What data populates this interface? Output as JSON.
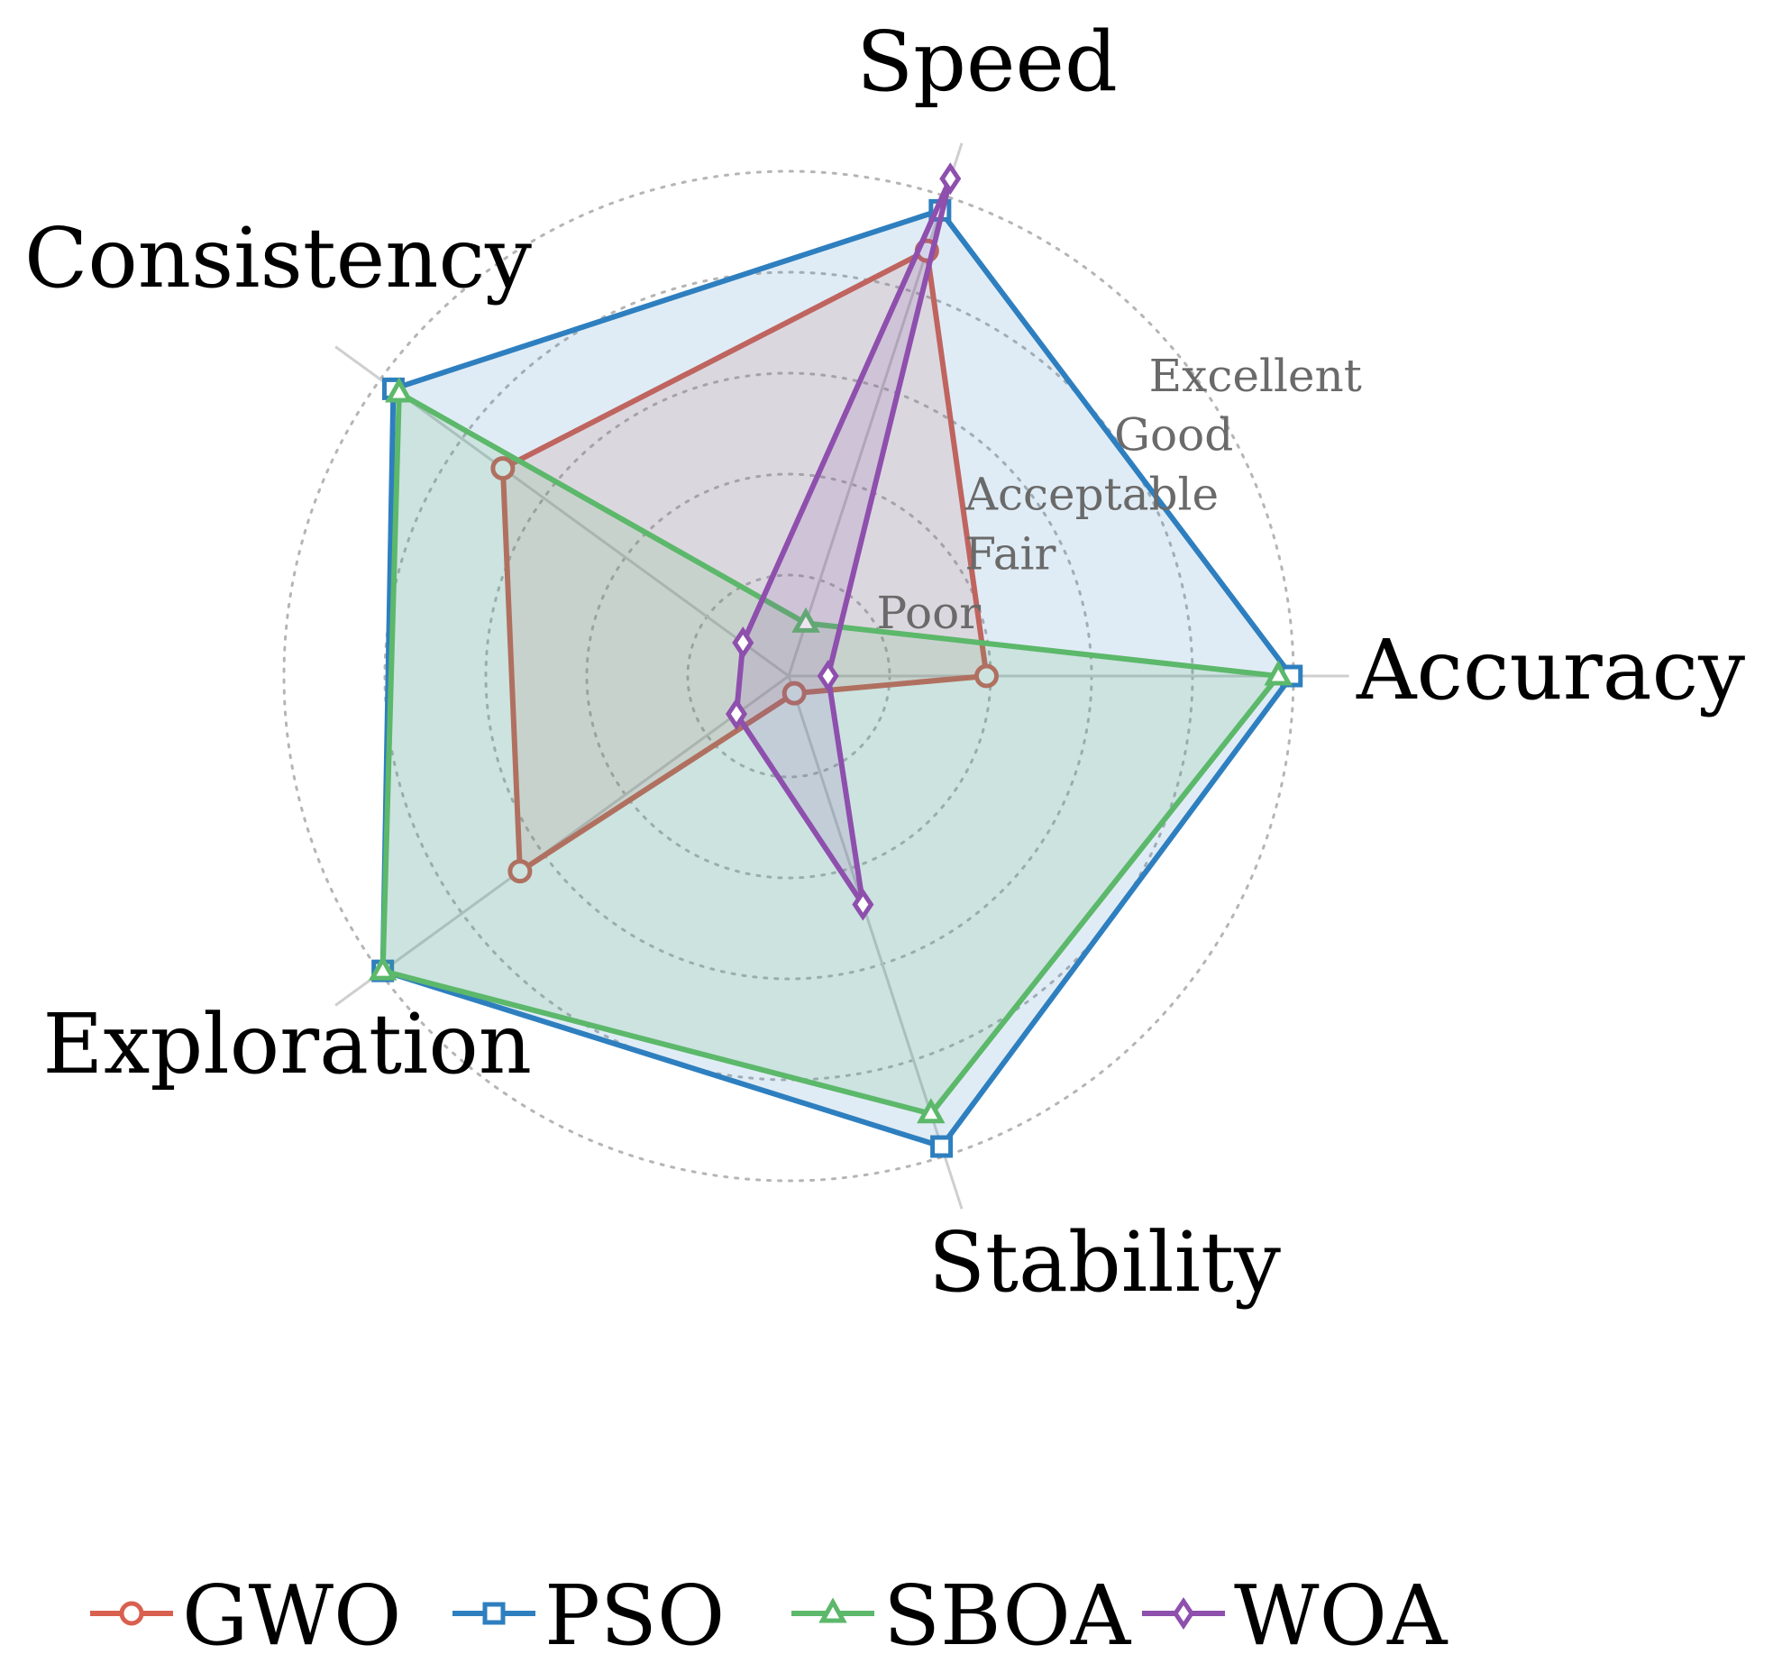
{
  "chart_data": {
    "type": "radar",
    "axes": [
      "Speed",
      "Accuracy",
      "Stability",
      "Exploration",
      "Consistency"
    ],
    "levels": [
      "Poor",
      "Fair",
      "Acceptable",
      "Good",
      "Excellent"
    ],
    "range": [
      0,
      5
    ],
    "grid": true,
    "legend_position": "bottom",
    "series": [
      {
        "name": "GWO",
        "color": "#d9604f",
        "marker": "circle",
        "values": [
          4.43,
          1.96,
          0.18,
          3.29,
          3.5
        ]
      },
      {
        "name": "PSO",
        "color": "#2e7fbf",
        "marker": "square",
        "values": [
          4.85,
          4.98,
          4.9,
          4.97,
          4.84
        ]
      },
      {
        "name": "SBOA",
        "color": "#5cb86a",
        "marker": "triangle",
        "values": [
          0.55,
          4.85,
          4.56,
          4.97,
          4.77
        ]
      },
      {
        "name": "WOA",
        "color": "#8e4fad",
        "marker": "diamond",
        "values": [
          5.18,
          0.39,
          2.38,
          0.64,
          0.56
        ]
      }
    ]
  }
}
